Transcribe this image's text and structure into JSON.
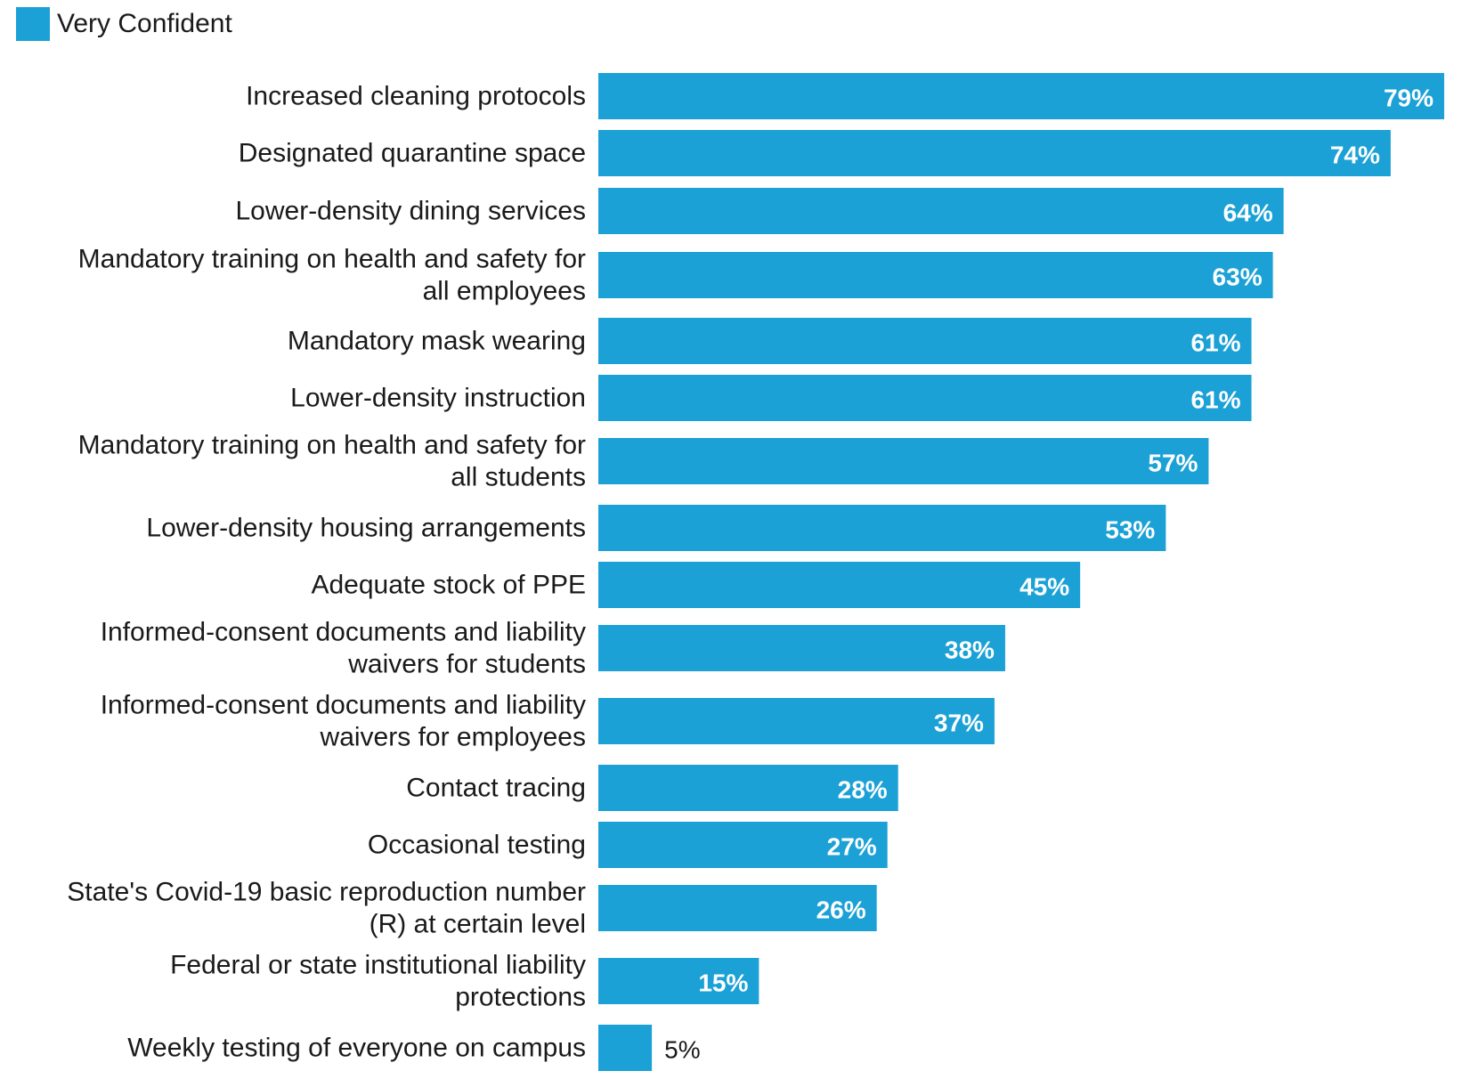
{
  "chart_data": {
    "type": "bar",
    "orientation": "horizontal",
    "legend": {
      "label": "Very Confident",
      "placement": "top-left"
    },
    "categories": [
      [
        "Increased cleaning protocols"
      ],
      [
        "Designated quarantine space"
      ],
      [
        "Lower-density dining services"
      ],
      [
        "Mandatory training on health and safety for",
        "all employees"
      ],
      [
        "Mandatory mask wearing"
      ],
      [
        "Lower-density instruction"
      ],
      [
        "Mandatory training on health and safety for",
        "all students"
      ],
      [
        "Lower-density housing arrangements"
      ],
      [
        "Adequate stock of PPE"
      ],
      [
        "Informed-consent documents and liability",
        "waivers for students"
      ],
      [
        "Informed-consent documents and liability",
        "waivers for employees"
      ],
      [
        "Contact tracing"
      ],
      [
        "Occasional testing"
      ],
      [
        "State's Covid-19 basic reproduction number",
        "(R) at certain level"
      ],
      [
        "Federal or state institutional liability",
        "protections"
      ],
      [
        "Weekly testing of everyone on campus"
      ]
    ],
    "series": [
      {
        "name": "Very Confident",
        "values": [
          79,
          74,
          64,
          63,
          61,
          61,
          57,
          53,
          45,
          38,
          37,
          28,
          27,
          26,
          15,
          5
        ],
        "labels": [
          "79%",
          "74%",
          "64%",
          "63%",
          "61%",
          "61%",
          "57%",
          "53%",
          "45%",
          "38%",
          "37%",
          "28%",
          "27%",
          "26%",
          "15%",
          "5%"
        ]
      }
    ],
    "xlim": [
      0,
      79
    ],
    "bar_color": "#1ba1d6",
    "grid": false
  }
}
